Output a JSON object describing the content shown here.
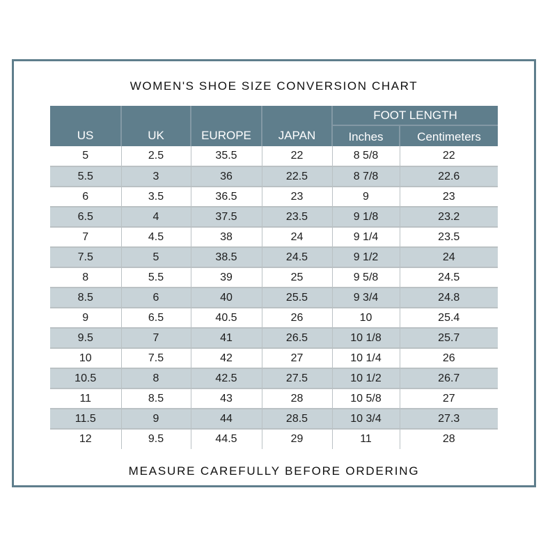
{
  "title": "WOMEN'S SHOE SIZE CONVERSION CHART",
  "footer": "MEASURE CAREFULLY BEFORE ORDERING",
  "table": {
    "group_header": "FOOT LENGTH",
    "columns": [
      "US",
      "UK",
      "EUROPE",
      "JAPAN"
    ],
    "sub_columns": [
      "Inches",
      "Centimeters"
    ],
    "rows": [
      [
        "5",
        "2.5",
        "35.5",
        "22",
        "8 5/8",
        "22"
      ],
      [
        "5.5",
        "3",
        "36",
        "22.5",
        "8 7/8",
        "22.6"
      ],
      [
        "6",
        "3.5",
        "36.5",
        "23",
        "9",
        "23"
      ],
      [
        "6.5",
        "4",
        "37.5",
        "23.5",
        "9 1/8",
        "23.2"
      ],
      [
        "7",
        "4.5",
        "38",
        "24",
        "9 1/4",
        "23.5"
      ],
      [
        "7.5",
        "5",
        "38.5",
        "24.5",
        "9 1/2",
        "24"
      ],
      [
        "8",
        "5.5",
        "39",
        "25",
        "9 5/8",
        "24.5"
      ],
      [
        "8.5",
        "6",
        "40",
        "25.5",
        "9 3/4",
        "24.8"
      ],
      [
        "9",
        "6.5",
        "40.5",
        "26",
        "10",
        "25.4"
      ],
      [
        "9.5",
        "7",
        "41",
        "26.5",
        "10 1/8",
        "25.7"
      ],
      [
        "10",
        "7.5",
        "42",
        "27",
        "10 1/4",
        "26"
      ],
      [
        "10.5",
        "8",
        "42.5",
        "27.5",
        "10 1/2",
        "26.7"
      ],
      [
        "11",
        "8.5",
        "43",
        "28",
        "10 5/8",
        "27"
      ],
      [
        "11.5",
        "9",
        "44",
        "28.5",
        "10 3/4",
        "27.3"
      ],
      [
        "12",
        "9.5",
        "44.5",
        "29",
        "11",
        "28"
      ]
    ]
  },
  "chart_data": {
    "type": "table",
    "title": "WOMEN'S SHOE SIZE CONVERSION CHART",
    "note": "MEASURE CAREFULLY BEFORE ORDERING",
    "columns": [
      "US",
      "UK",
      "EUROPE",
      "JAPAN",
      "FOOT LENGTH Inches",
      "FOOT LENGTH Centimeters"
    ],
    "rows": [
      [
        "5",
        "2.5",
        "35.5",
        "22",
        "8 5/8",
        "22"
      ],
      [
        "5.5",
        "3",
        "36",
        "22.5",
        "8 7/8",
        "22.6"
      ],
      [
        "6",
        "3.5",
        "36.5",
        "23",
        "9",
        "23"
      ],
      [
        "6.5",
        "4",
        "37.5",
        "23.5",
        "9 1/8",
        "23.2"
      ],
      [
        "7",
        "4.5",
        "38",
        "24",
        "9 1/4",
        "23.5"
      ],
      [
        "7.5",
        "5",
        "38.5",
        "24.5",
        "9 1/2",
        "24"
      ],
      [
        "8",
        "5.5",
        "39",
        "25",
        "9 5/8",
        "24.5"
      ],
      [
        "8.5",
        "6",
        "40",
        "25.5",
        "9 3/4",
        "24.8"
      ],
      [
        "9",
        "6.5",
        "40.5",
        "26",
        "10",
        "25.4"
      ],
      [
        "9.5",
        "7",
        "41",
        "26.5",
        "10 1/8",
        "25.7"
      ],
      [
        "10",
        "7.5",
        "42",
        "27",
        "10 1/4",
        "26"
      ],
      [
        "10.5",
        "8",
        "42.5",
        "27.5",
        "10 1/2",
        "26.7"
      ],
      [
        "11",
        "8.5",
        "43",
        "28",
        "10 5/8",
        "27"
      ],
      [
        "11.5",
        "9",
        "44",
        "28.5",
        "10 3/4",
        "27.3"
      ],
      [
        "12",
        "9.5",
        "44.5",
        "29",
        "11",
        "28"
      ]
    ]
  },
  "colors": {
    "header_bg": "#5f7e8c",
    "frame_border": "#5f7e8c",
    "row_alt": "#c8d3d8",
    "row_line": "#bac1c4",
    "header_line": "#8399a5",
    "text": "#1c1c1c",
    "header_text": "#ffffff"
  }
}
